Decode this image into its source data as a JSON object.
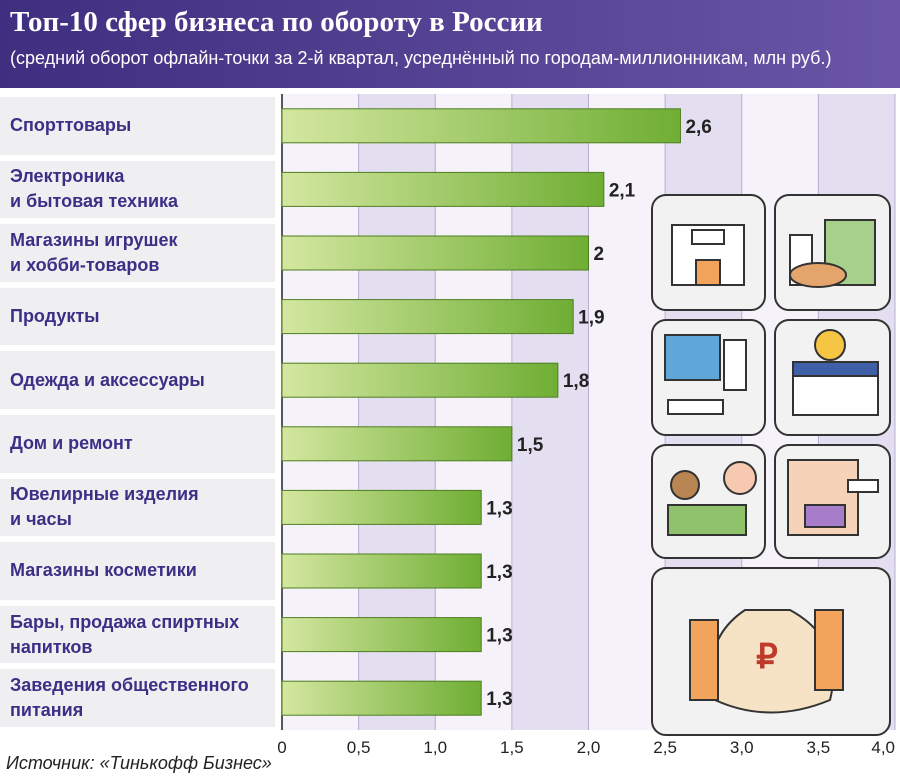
{
  "chart_data": {
    "type": "bar",
    "title": "Топ-10 сфер бизнеса по обороту в России",
    "subtitle": "(средний оборот офлайн-точки за 2-й квартал, усреднённый по городам-миллионникам, млн руб.)",
    "source": "Источник: «Тинькофф Бизнес»",
    "categories": [
      "Спорттовары",
      "Электроника\nи бытовая техника",
      "Магазины игрушек\nи хобби-товаров",
      "Продукты",
      "Одежда и аксессуары",
      "Дом и ремонт",
      "Ювелирные изделия\nи часы",
      "Магазины косметики",
      "Бары, продажа спиртных\nнапитков",
      "Заведения общественного\nпитания"
    ],
    "values": [
      2.6,
      2.1,
      2,
      1.9,
      1.8,
      1.5,
      1.3,
      1.3,
      1.3,
      1.3
    ],
    "value_labels": [
      "2,6",
      "2,1",
      "2",
      "1,9",
      "1,8",
      "1,5",
      "1,3",
      "1,3",
      "1,3",
      "1,3"
    ],
    "color": "#7bb33a",
    "xlim": [
      0,
      4
    ],
    "xticks": [
      0,
      {
        "value": 0.5,
        "label": "0,5"
      },
      {
        "value": 1,
        "label": "1,0"
      },
      {
        "value": 1.5,
        "label": "1,5"
      },
      {
        "value": 2,
        "label": "2,0"
      },
      {
        "value": 2.5,
        "label": "2,5"
      },
      {
        "value": 3,
        "label": "3,0"
      },
      {
        "value": 3.5,
        "label": "3,5"
      },
      {
        "value": 4,
        "label": "4,0"
      }
    ],
    "grid": true
  }
}
